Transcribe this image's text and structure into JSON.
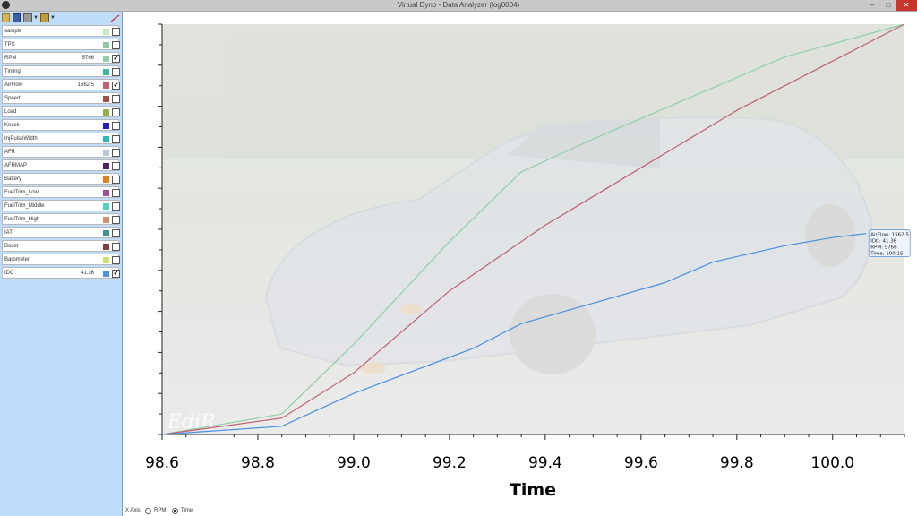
{
  "window": {
    "title": "Virtual Dyno - Data Analyzer (log0004)",
    "minimize": "–",
    "maximize": "□",
    "close": "✕"
  },
  "toolbar": {
    "icons": [
      "folder-open-icon",
      "save-icon",
      "print-icon",
      "export-icon",
      "chart-icon"
    ]
  },
  "channels": [
    {
      "name": "sample",
      "value": "",
      "color": "#c8e8c8",
      "checked": false
    },
    {
      "name": "TPS",
      "value": "",
      "color": "#8fc9a0",
      "checked": false
    },
    {
      "name": "RPM",
      "value": "5766",
      "color": "#8fd0a8",
      "checked": true
    },
    {
      "name": "Timing",
      "value": "",
      "color": "#3cb8a0",
      "checked": false
    },
    {
      "name": "AirFlow",
      "value": "1562.5",
      "color": "#c06070",
      "checked": true
    },
    {
      "name": "Speed",
      "value": "",
      "color": "#a05040",
      "checked": false
    },
    {
      "name": "Load",
      "value": "",
      "color": "#90b050",
      "checked": false
    },
    {
      "name": "Knock",
      "value": "",
      "color": "#2020c0",
      "checked": false
    },
    {
      "name": "InjPulseWidth",
      "value": "",
      "color": "#30b8b0",
      "checked": false
    },
    {
      "name": "AFR",
      "value": "",
      "color": "#b8c8d8",
      "checked": false
    },
    {
      "name": "AFRMAP",
      "value": "",
      "color": "#502060",
      "checked": false
    },
    {
      "name": "Battery",
      "value": "",
      "color": "#e08020",
      "checked": false
    },
    {
      "name": "FuelTrim_Low",
      "value": "",
      "color": "#a05090",
      "checked": false
    },
    {
      "name": "FuelTrim_Middle",
      "value": "",
      "color": "#50d0c0",
      "checked": false
    },
    {
      "name": "FuelTrim_High",
      "value": "",
      "color": "#d09070",
      "checked": false
    },
    {
      "name": "IAT",
      "value": "",
      "color": "#409090",
      "checked": false
    },
    {
      "name": "Boost",
      "value": "",
      "color": "#804040",
      "checked": false
    },
    {
      "name": "Barometer",
      "value": "",
      "color": "#d0e070",
      "checked": false
    },
    {
      "name": "IDC",
      "value": "41.36",
      "color": "#4a90e2",
      "checked": true
    }
  ],
  "xaxis_selector": {
    "label": "X Axis:",
    "options": [
      "RPM",
      "Time"
    ],
    "selected": "Time"
  },
  "tooltip": {
    "lines": [
      "AirFlow: 1562.5",
      "IDC: 41.36",
      "RPM: 5766",
      "Time: 100.15"
    ]
  },
  "watermark": "EdiR",
  "chart_data": {
    "type": "line",
    "xlabel": "Time",
    "ylabel": "",
    "xlim": [
      98.6,
      100.15
    ],
    "ylim": [
      0,
      100
    ],
    "x_ticks": [
      "98.6",
      "98.8",
      "99.0",
      "99.2",
      "99.4",
      "99.6",
      "99.8",
      "100.0"
    ],
    "grid": false,
    "series": [
      {
        "name": "RPM",
        "color": "#8fd0a8",
        "x": [
          98.6,
          98.85,
          99.0,
          99.2,
          99.35,
          99.5,
          99.7,
          99.9,
          100.15
        ],
        "y": [
          0,
          5,
          22,
          47,
          64,
          72,
          82,
          92,
          100
        ]
      },
      {
        "name": "AirFlow",
        "color": "#c06070",
        "x": [
          98.6,
          98.85,
          99.0,
          99.2,
          99.4,
          99.6,
          99.8,
          100.0,
          100.15
        ],
        "y": [
          0,
          4,
          15,
          35,
          51,
          65,
          79,
          91,
          100
        ]
      },
      {
        "name": "IDC",
        "color": "#4a90e2",
        "x": [
          98.6,
          98.85,
          99.0,
          99.25,
          99.35,
          99.5,
          99.65,
          99.75,
          99.9,
          100.0,
          100.07
        ],
        "y": [
          0,
          2,
          10,
          21,
          27,
          32,
          37,
          42,
          46,
          48,
          49
        ]
      }
    ]
  }
}
